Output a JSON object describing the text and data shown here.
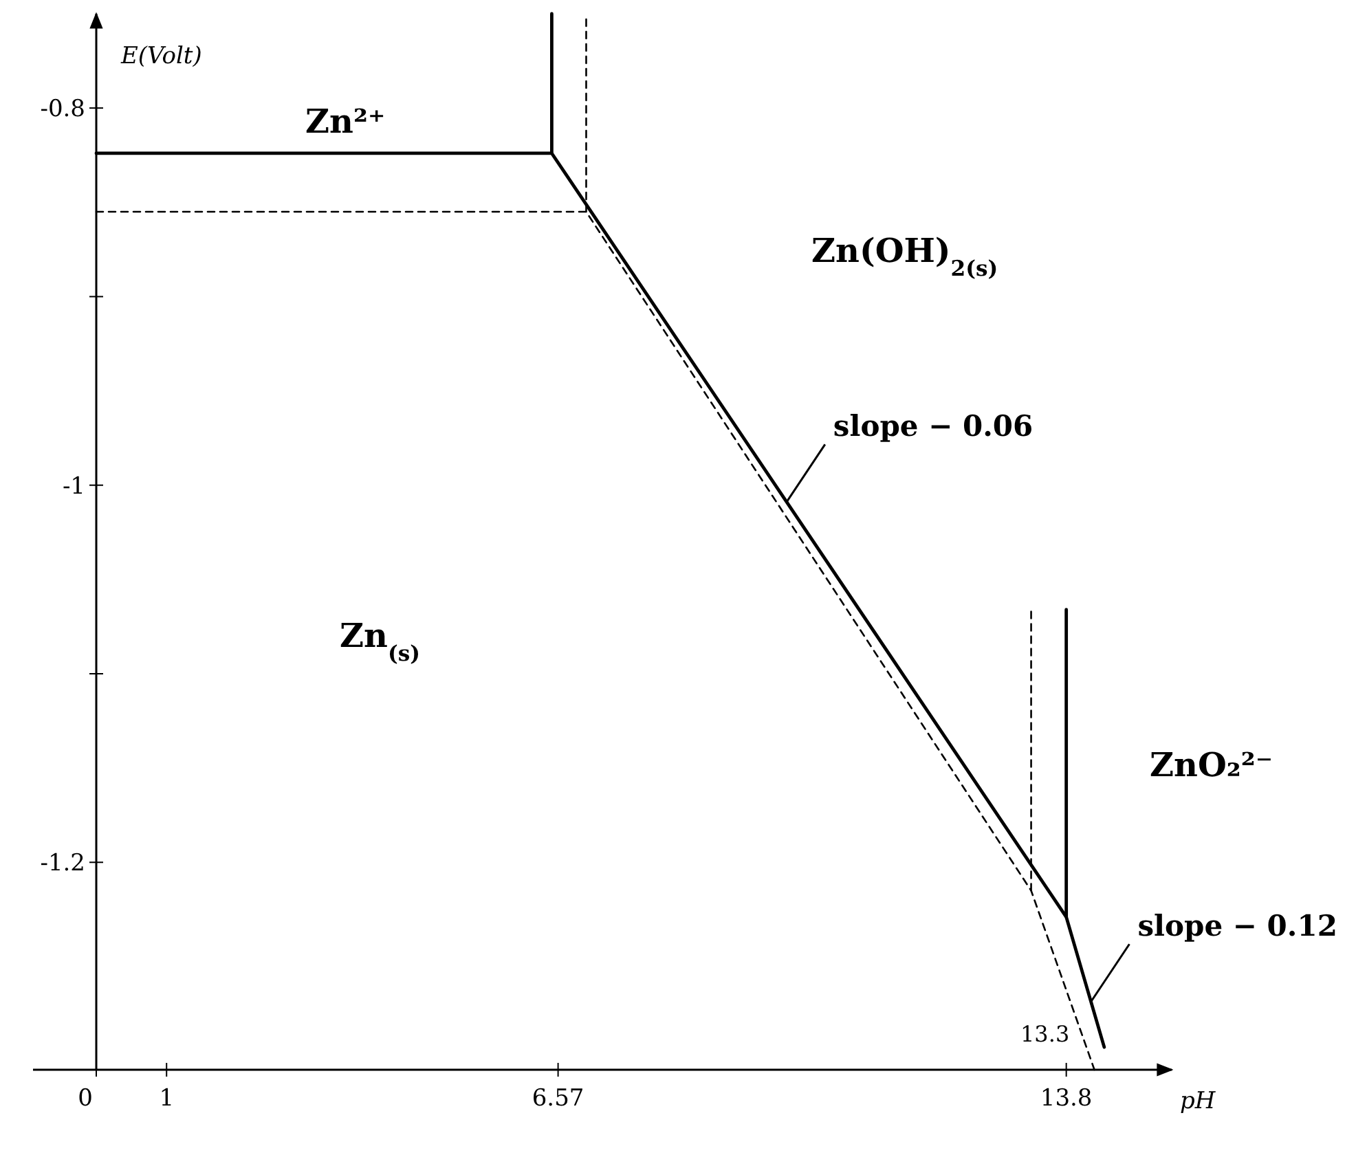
{
  "chart_data": {
    "type": "line",
    "xlabel": "pH",
    "ylabel": "E(Volt)",
    "xlim": [
      -0.9,
      15.3
    ],
    "ylim": [
      -1.31,
      -0.75
    ],
    "xticks": [
      0,
      1,
      6.57,
      13.8
    ],
    "yticks": [
      -0.8,
      {
        "value": -0.9,
        "label": null
      },
      -1,
      {
        "value": -1.1,
        "label": null
      },
      -1.2
    ],
    "series": [
      {
        "color": "#000000",
        "line_style": "solid",
        "x": [
          0,
          6.48,
          13.8,
          14.34
        ],
        "values": [
          -0.824,
          -0.824,
          -1.229,
          -1.298
        ]
      },
      {
        "color": "#000000",
        "line_style": "solid",
        "x": [
          6.48,
          6.48
        ],
        "values": [
          -0.824,
          -0.75
        ]
      },
      {
        "color": "#000000",
        "line_style": "solid",
        "x": [
          13.8,
          13.8
        ],
        "values": [
          -1.229,
          -1.066
        ]
      },
      {
        "color": "#000000",
        "line_style": "dashed",
        "x": [
          0,
          6.97,
          13.3,
          14.2
        ],
        "values": [
          -0.855,
          -0.855,
          -1.215,
          -1.31
        ]
      },
      {
        "color": "#000000",
        "line_style": "dashed",
        "x": [
          6.97,
          6.97
        ],
        "values": [
          -0.855,
          -0.75
        ]
      },
      {
        "color": "#000000",
        "line_style": "dashed",
        "x": [
          13.3,
          13.3
        ],
        "values": [
          -1.215,
          -1.066
        ]
      }
    ],
    "annotations": [
      "Zn²⁺",
      "Zn(OH)$_{2(s)}$",
      "Zn$_{(s)}$",
      "ZnO₂²⁻",
      {
        "text": "slope − 0.06",
        "x": 9.82,
        "y": -1.009
      },
      {
        "text": "slope − 0.12",
        "x": 14.15,
        "y": -1.274
      },
      "13.3"
    ]
  }
}
